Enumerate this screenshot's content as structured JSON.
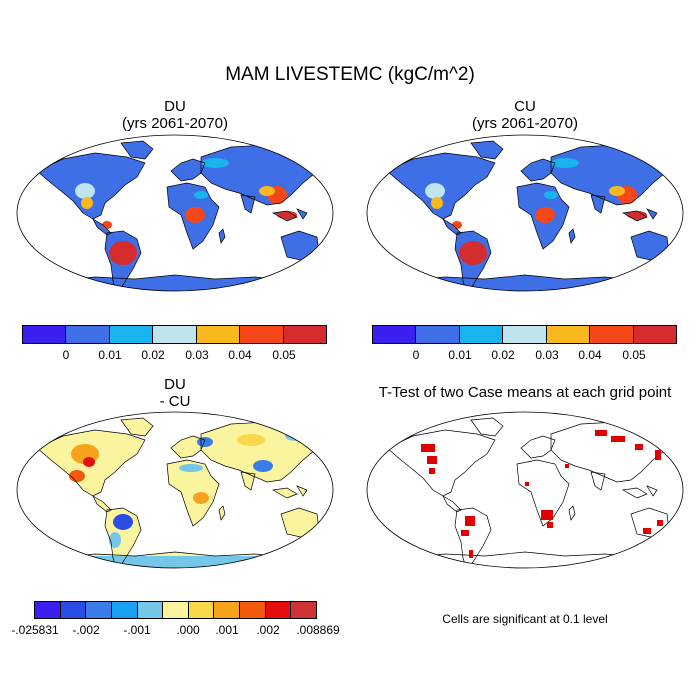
{
  "title": "MAM LIVESTEMC (kgC/m^2)",
  "panels": {
    "du": {
      "title": "DU",
      "subtitle": "(yrs 2061-2070)"
    },
    "cu": {
      "title": "CU",
      "subtitle": "(yrs 2061-2070)"
    },
    "diff": {
      "title": "DU",
      "subtitle": "- CU"
    },
    "ttest": {
      "title": "T-Test of two Case means at each grid point"
    }
  },
  "colorbars": {
    "top": {
      "colors": [
        "#3b1ff0",
        "#3f6fe6",
        "#19b4ee",
        "#bfe4f0",
        "#f9b81e",
        "#f5471a",
        "#d52d2d"
      ],
      "labels": [
        "0",
        "0.01",
        "0.02",
        "0.03",
        "0.04",
        "0.05"
      ]
    },
    "diff": {
      "colors": [
        "#3b1ff0",
        "#2a4de6",
        "#3a7ce8",
        "#1aa0f0",
        "#75c7ea",
        "#fbf49e",
        "#f9d74a",
        "#f6a21c",
        "#f4590e",
        "#e60d0d",
        "#cf3434"
      ],
      "labels": [
        "-.025831",
        "-.002",
        "-.001",
        ".000",
        ".001",
        ".002",
        ".008869"
      ]
    }
  },
  "note": "Cells are significant at 0.1 level"
}
